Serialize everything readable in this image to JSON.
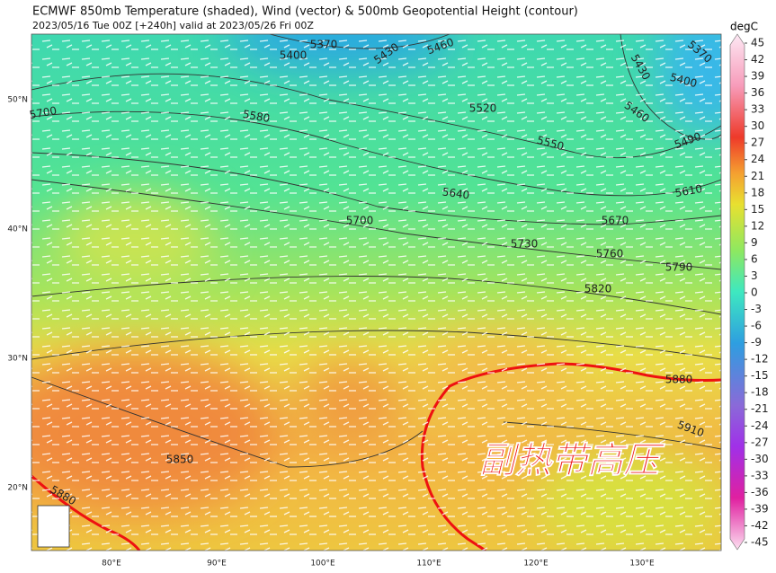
{
  "header": {
    "title": "ECMWF 850mb Temperature (shaded), Wind (vector) & 500mb Geopotential Height (contour)",
    "subtitle": "2023/05/16 Tue 00Z [+240h] valid at 2023/05/26 Fri 00Z"
  },
  "map": {
    "lon_labels": [
      "80°E",
      "90°E",
      "100°E",
      "110°E",
      "120°E",
      "130°E"
    ],
    "lat_labels": [
      "50°N",
      "40°N",
      "30°N",
      "20°N"
    ],
    "contour_labels": [
      "5370",
      "5400",
      "5430",
      "5460",
      "5370",
      "5400",
      "5430",
      "5460",
      "5490",
      "5520",
      "5550",
      "5580",
      "5610",
      "5640",
      "5670",
      "5700",
      "5700",
      "5730",
      "5760",
      "5790",
      "5820",
      "5850",
      "5880",
      "5880",
      "5910"
    ],
    "annotation": "副热带高压"
  },
  "colorbar": {
    "unit": "degC",
    "ticks": [
      45,
      42,
      39,
      36,
      33,
      30,
      27,
      24,
      21,
      18,
      15,
      12,
      9,
      6,
      3,
      0,
      -3,
      -6,
      -9,
      -12,
      -15,
      -18,
      -21,
      -24,
      -27,
      -30,
      -33,
      -36,
      -39,
      -42,
      -45
    ]
  }
}
